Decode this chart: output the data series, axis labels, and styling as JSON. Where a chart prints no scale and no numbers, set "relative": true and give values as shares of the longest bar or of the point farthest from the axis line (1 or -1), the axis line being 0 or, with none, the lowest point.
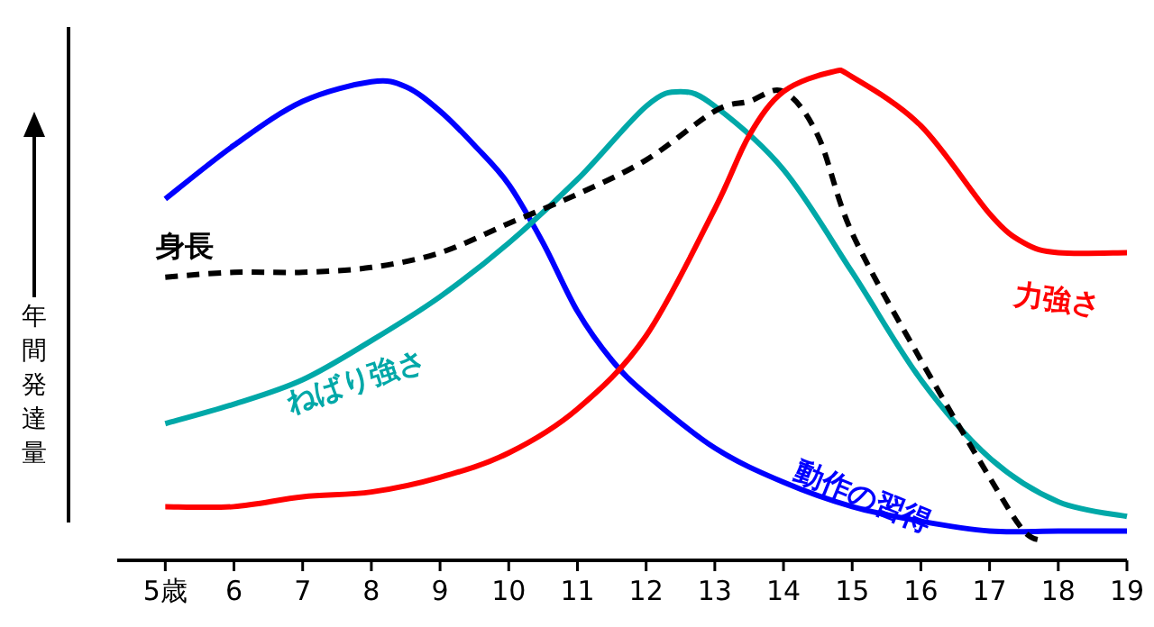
{
  "chart_data": {
    "type": "line",
    "relative": true,
    "ylabel": "年間発達量",
    "xlim": [
      4.3,
      19
    ],
    "xticks": [
      {
        "value": 5,
        "label": "5歳"
      },
      6,
      7,
      8,
      9,
      10,
      11,
      12,
      13,
      14,
      15,
      16,
      17,
      18,
      19
    ],
    "grid": false,
    "marker": "none",
    "series": [
      {
        "name": "動作の習得",
        "color": "#0000ff",
        "line_style": "solid",
        "x": [
          5,
          6,
          7,
          8,
          8.5,
          9,
          9.5,
          10,
          10.5,
          11,
          11.5,
          12,
          13,
          14,
          15,
          16,
          17,
          18,
          19
        ],
        "values": [
          0.74,
          0.85,
          0.94,
          0.98,
          0.97,
          0.92,
          0.85,
          0.77,
          0.65,
          0.51,
          0.41,
          0.34,
          0.23,
          0.16,
          0.11,
          0.08,
          0.06,
          0.06,
          0.06
        ]
      },
      {
        "name": "ねばり強さ",
        "color": "#00a8a8",
        "line_style": "solid",
        "x": [
          5,
          6,
          7,
          8,
          9,
          10,
          11,
          12,
          12.5,
          13,
          14,
          15,
          16,
          17,
          18,
          19
        ],
        "values": [
          0.28,
          0.32,
          0.37,
          0.45,
          0.54,
          0.65,
          0.78,
          0.93,
          0.96,
          0.93,
          0.8,
          0.59,
          0.37,
          0.21,
          0.12,
          0.09
        ]
      },
      {
        "name": "身長",
        "color": "#000000",
        "line_style": "dashed",
        "x": [
          5,
          6,
          7,
          8,
          9,
          10,
          11,
          12,
          13,
          13.5,
          14,
          14.5,
          15,
          16,
          17,
          17.5,
          17.8
        ],
        "values": [
          0.58,
          0.59,
          0.59,
          0.6,
          0.63,
          0.69,
          0.75,
          0.82,
          0.92,
          0.94,
          0.96,
          0.87,
          0.67,
          0.41,
          0.17,
          0.06,
          0.04
        ]
      },
      {
        "name": "力強さ",
        "color": "#ff0000",
        "line_style": "solid",
        "x": [
          5,
          6,
          7,
          8,
          9,
          10,
          11,
          12,
          13,
          13.5,
          14,
          14.7,
          15,
          16,
          17,
          17.5,
          18,
          19
        ],
        "values": [
          0.11,
          0.11,
          0.13,
          0.14,
          0.17,
          0.22,
          0.31,
          0.46,
          0.72,
          0.87,
          0.96,
          1.0,
          0.99,
          0.89,
          0.71,
          0.65,
          0.63,
          0.63
        ]
      }
    ]
  }
}
